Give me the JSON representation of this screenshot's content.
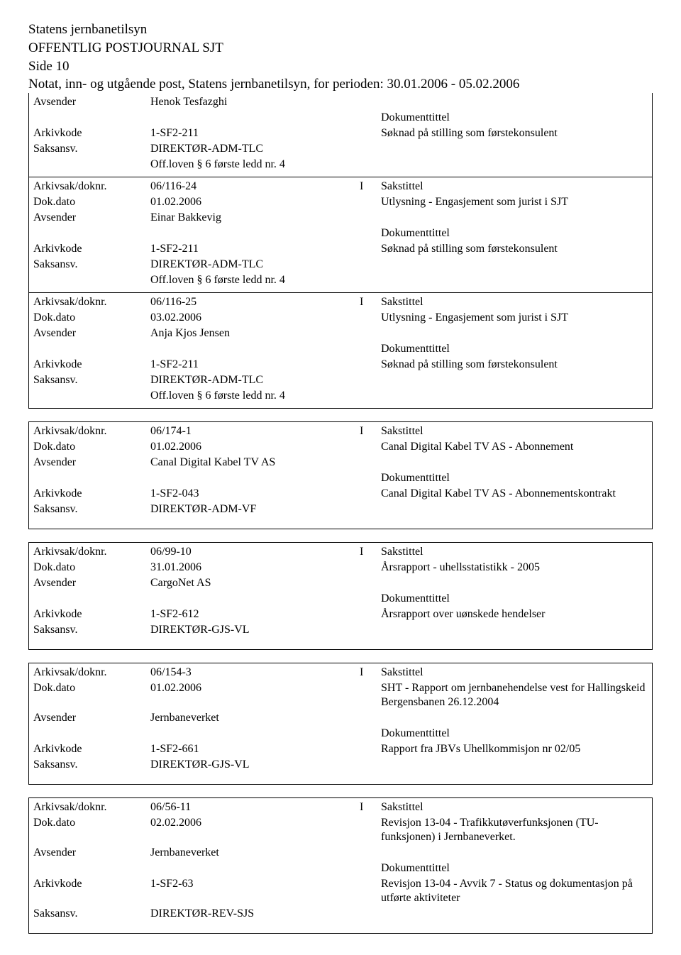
{
  "header": {
    "org": "Statens jernbanetilsyn",
    "title": "OFFENTLIG POSTJOURNAL SJT",
    "side": "Side 10",
    "sub": "Notat, inn- og utgående post, Statens jernbanetilsyn, for perioden: 30.01.2006 - 05.02.2006"
  },
  "labels": {
    "avsender": "Avsender",
    "arkivkode": "Arkivkode",
    "saksansv": "Saksansv.",
    "arkivsak": "Arkivsak/doknr.",
    "dokdato": "Dok.dato",
    "sakstittel": "Sakstittel",
    "doktittel": "Dokumenttittel"
  },
  "entries": [
    {
      "avsender": "Henok Tesfazghi",
      "arkivkode": "1-SF2-211",
      "saksansv": "DIREKTØR-ADM-TLC",
      "offloven": "Off.loven § 6 første ledd nr. 4",
      "doktittel": "Søknad på stilling som førstekonsulent",
      "noTopBorder": true
    },
    {
      "doknr": "06/116-24",
      "io": "I",
      "dokdato": "01.02.2006",
      "sakstittel_text": "Utlysning - Engasjement som jurist i SJT",
      "avsender": "Einar Bakkevig",
      "arkivkode": "1-SF2-211",
      "saksansv": "DIREKTØR-ADM-TLC",
      "offloven": "Off.loven § 6 første ledd nr. 4",
      "doktittel": "Søknad på stilling som førstekonsulent"
    },
    {
      "doknr": "06/116-25",
      "io": "I",
      "dokdato": "03.02.2006",
      "sakstittel_text": "Utlysning - Engasjement som jurist i SJT",
      "avsender": "Anja Kjos Jensen",
      "arkivkode": "1-SF2-211",
      "saksansv": "DIREKTØR-ADM-TLC",
      "offloven": "Off.loven § 6 første ledd nr. 4",
      "doktittel": "Søknad på stilling som førstekonsulent"
    },
    {
      "doknr": "06/174-1",
      "io": "I",
      "dokdato": "01.02.2006",
      "sakstittel_text": "Canal Digital Kabel TV AS - Abonnement",
      "avsender": "Canal Digital Kabel TV AS",
      "arkivkode": "1-SF2-043",
      "saksansv": "DIREKTØR-ADM-VF",
      "doktittel": "Canal Digital Kabel TV AS - Abonnementskontrakt",
      "separated": true
    },
    {
      "doknr": "06/99-10",
      "io": "I",
      "dokdato": "31.01.2006",
      "sakstittel_text": "Årsrapport - uhellsstatistikk - 2005",
      "avsender": "CargoNet AS",
      "arkivkode": "1-SF2-612",
      "saksansv": "DIREKTØR-GJS-VL",
      "doktittel": "Årsrapport over uønskede hendelser",
      "separated": true
    },
    {
      "doknr": "06/154-3",
      "io": "I",
      "dokdato": "01.02.2006",
      "sakstittel_text": "SHT - Rapport om jernbanehendelse vest for Hallingskeid Bergensbanen 26.12.2004",
      "avsender": "Jernbaneverket",
      "arkivkode": "1-SF2-661",
      "saksansv": "DIREKTØR-GJS-VL",
      "doktittel": "Rapport fra JBVs Uhellkommisjon nr 02/05",
      "separated": true
    },
    {
      "doknr": "06/56-11",
      "io": "I",
      "dokdato": "02.02.2006",
      "sakstittel_text": "Revisjon 13-04 - Trafikkutøverfunksjonen (TU-funksjonen) i Jernbaneverket.",
      "avsender": "Jernbaneverket",
      "arkivkode": "1-SF2-63",
      "saksansv": "DIREKTØR-REV-SJS",
      "doktittel": "Revisjon 13-04 - Avvik 7 - Status og dokumentasjon på utførte aktiviteter",
      "separated": true
    }
  ]
}
